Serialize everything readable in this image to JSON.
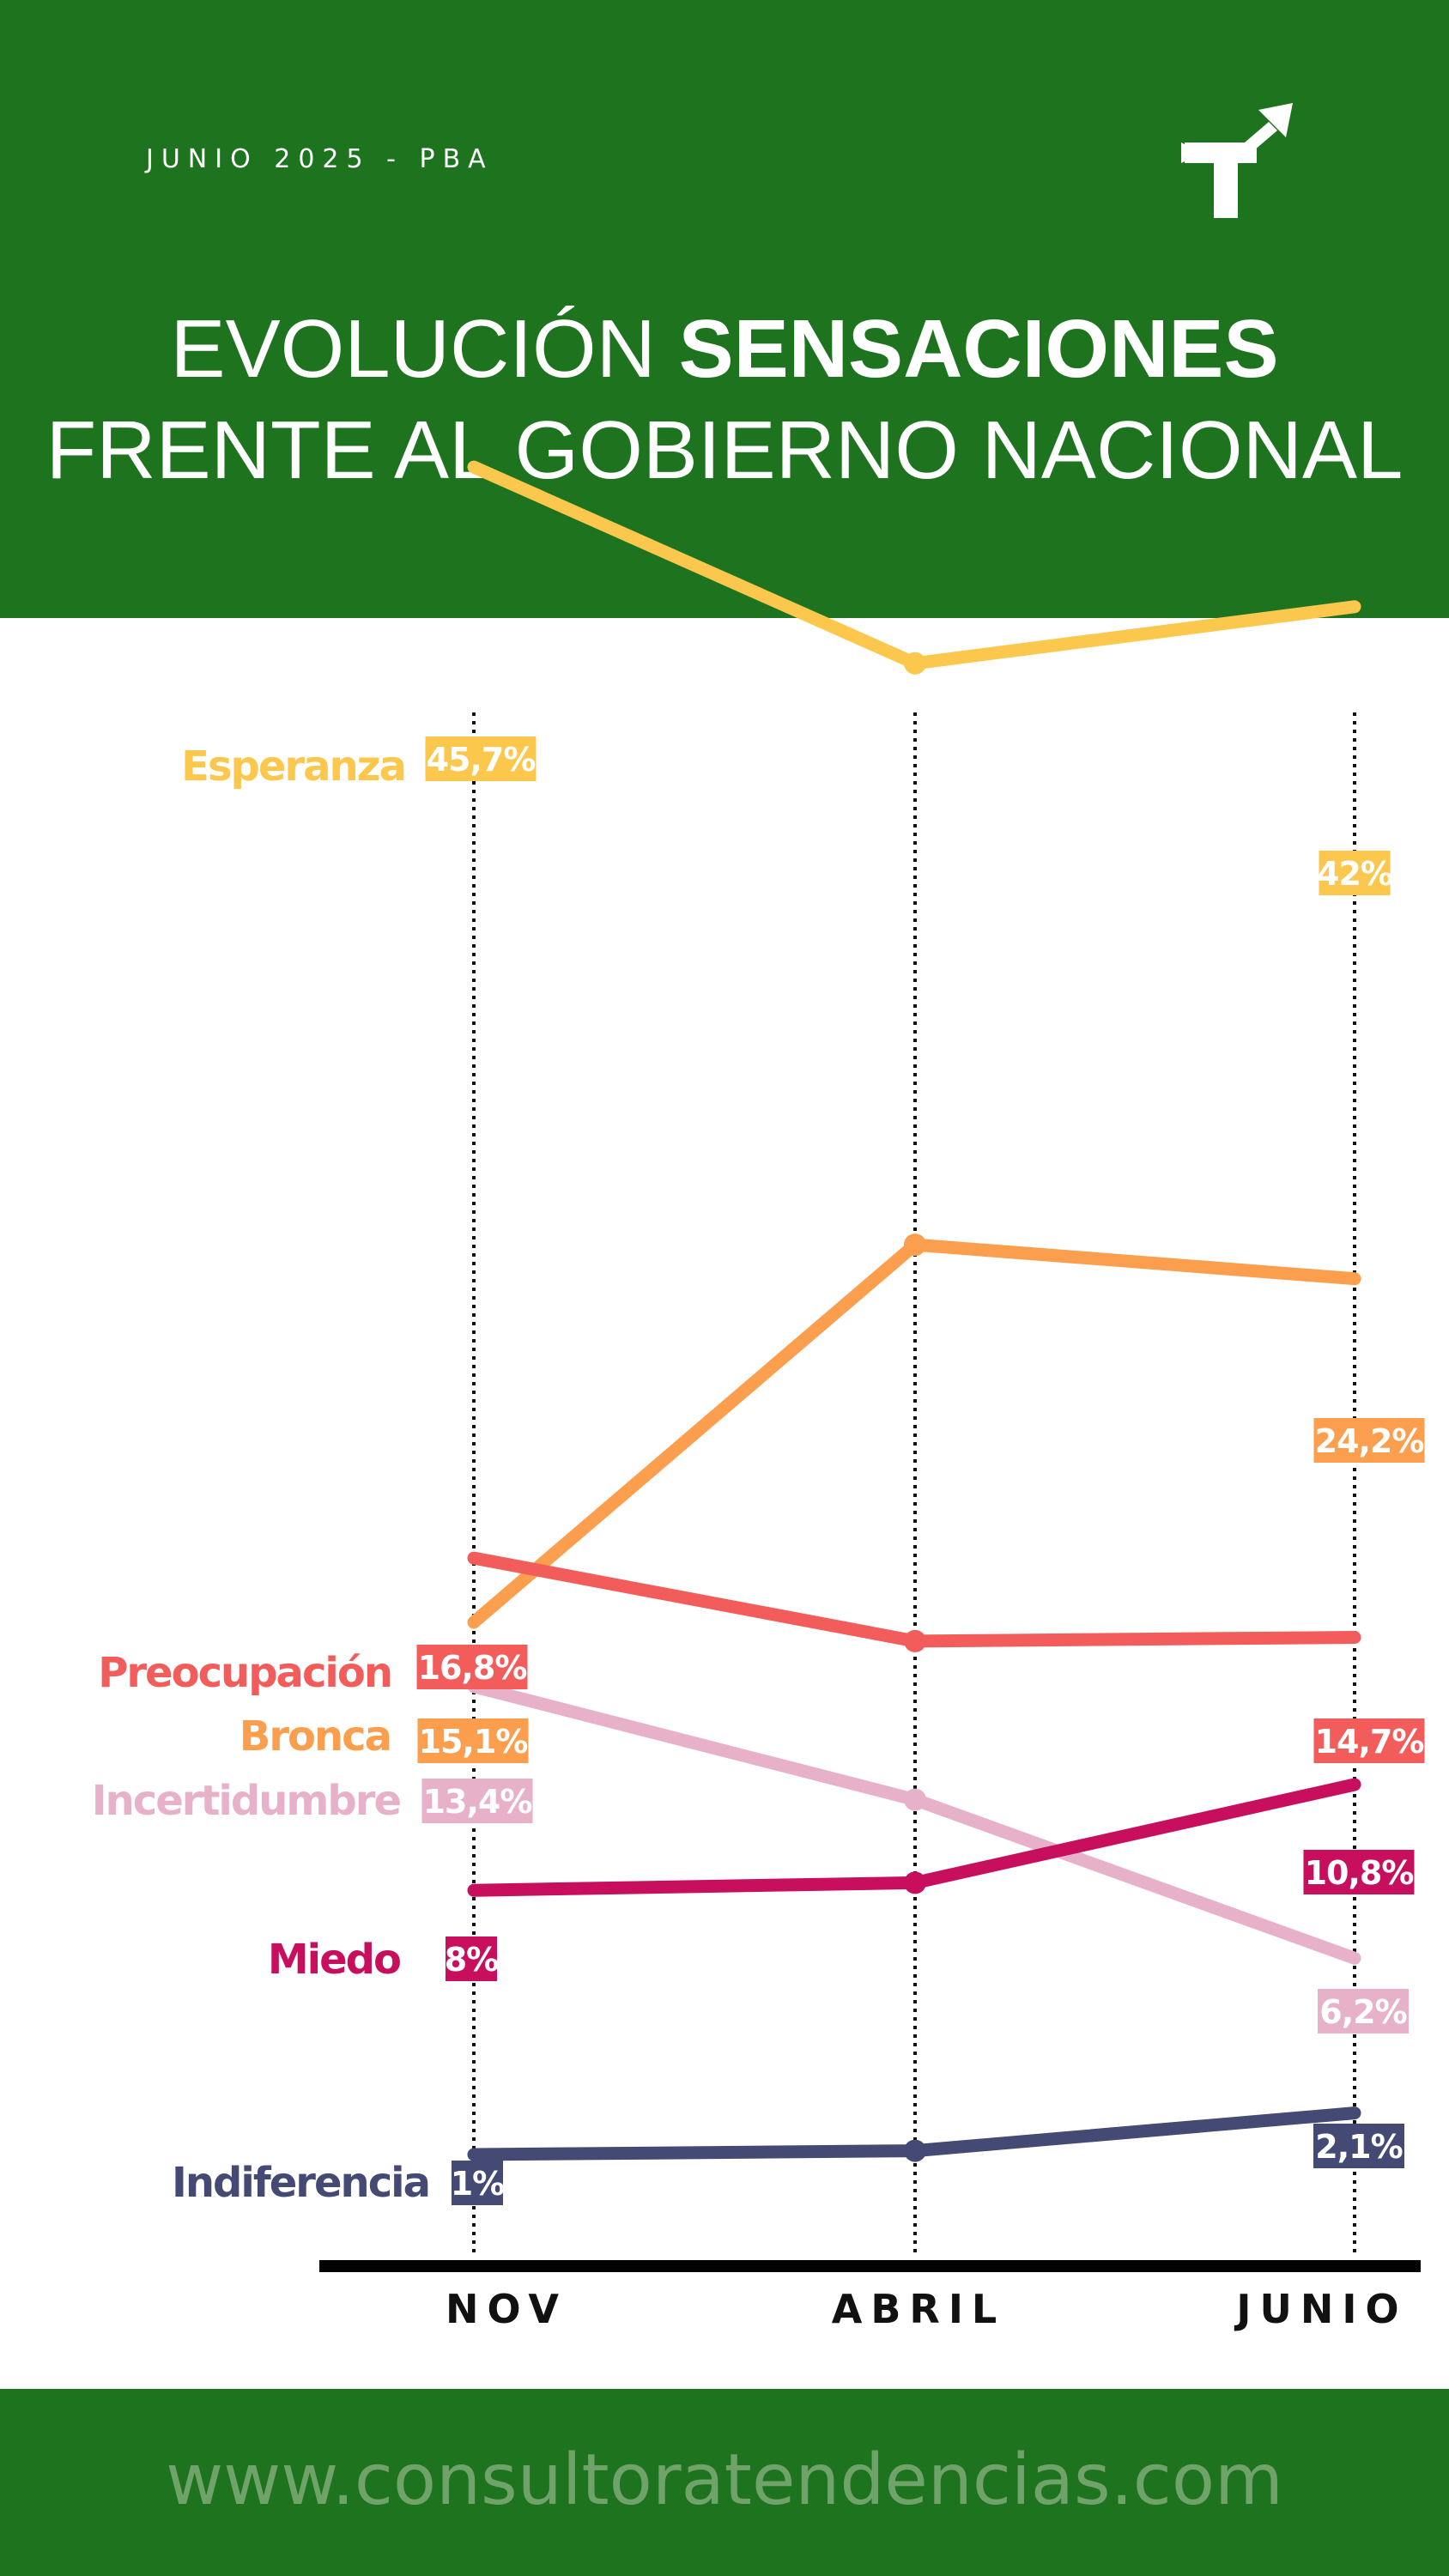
{
  "header": {
    "date_label": "JUNIO 2025 - PBA",
    "title_line1_light": "EVOLUCIÓN ",
    "title_line1_bold": "SENSACIONES",
    "title_line2": "FRENTE AL GOBIERNO NACIONAL",
    "logo_icon": "tendencias-logo-icon"
  },
  "chart_data": {
    "type": "line",
    "categories": [
      "NOV",
      "ABRIL",
      "JUNIO"
    ],
    "grid": "vertical dotted lines at each category",
    "legend": "series names at left of first point",
    "series": [
      {
        "name": "Esperanza",
        "values": [
          45.7,
          40.5,
          42
        ],
        "labels": [
          "45,7%",
          null,
          "42%"
        ],
        "color": "#fbc74d"
      },
      {
        "name": "Bronca",
        "values": [
          15.1,
          25.1,
          24.2
        ],
        "labels": [
          "15,1%",
          null,
          "24,2%"
        ],
        "color": "#fb9e4d"
      },
      {
        "name": "Preocupación",
        "values": [
          16.8,
          14.6,
          14.7
        ],
        "labels": [
          "16,8%",
          null,
          "14,7%"
        ],
        "color": "#f25d5c"
      },
      {
        "name": "Incertidumbre",
        "values": [
          13.4,
          10.4,
          6.2
        ],
        "labels": [
          "13,4%",
          null,
          "6,2%"
        ],
        "color": "#e7b1c9"
      },
      {
        "name": "Miedo",
        "values": [
          8,
          8.2,
          10.8
        ],
        "labels": [
          "8%",
          null,
          "10,8%"
        ],
        "color": "#c70f5d"
      },
      {
        "name": "Indiferencia",
        "values": [
          1,
          1.1,
          2.1
        ],
        "labels": [
          "1%",
          null,
          "2,1%"
        ],
        "color": "#444a74"
      }
    ]
  },
  "footer": {
    "website": "www.consultoratendencias.com"
  },
  "colors": {
    "brand_green": "#1e731e",
    "footer_text": "#6fa36a"
  }
}
